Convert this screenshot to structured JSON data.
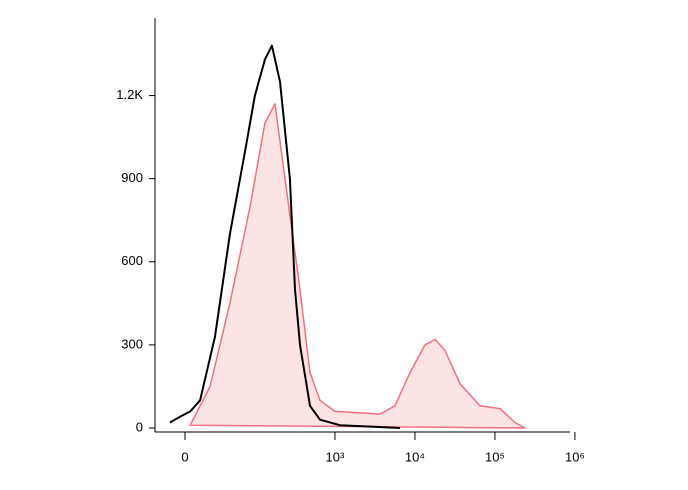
{
  "chart_data": {
    "type": "histogram-overlay",
    "xscale": "biexponential",
    "xlim": [
      -26,
      1000000
    ],
    "ylim": [
      0,
      1480
    ],
    "xticks": [
      0,
      {
        "value": 1000,
        "label": "10³"
      },
      {
        "value": 10000,
        "label": "10⁴"
      },
      {
        "value": 100000,
        "label": "10⁵"
      },
      {
        "value": 1000000,
        "label": "10⁶"
      }
    ],
    "yticks": [
      0,
      300,
      600,
      900,
      {
        "value": 1200,
        "label": "1.2K"
      }
    ],
    "series": [
      {
        "color": "#f07080",
        "fill": "#fde4e4",
        "x": [
          4,
          21,
          45,
          85,
          132,
          177,
          237,
          365,
          488,
          650,
          1000,
          2056,
          3655,
          5633,
          8680,
          13370,
          17840,
          23790,
          36630,
          65150,
          115800,
          178400,
          237600
        ],
        "values": [
          10,
          150,
          450,
          800,
          1100,
          1170,
          900,
          500,
          200,
          100,
          60,
          55,
          50,
          80,
          200,
          300,
          320,
          280,
          160,
          80,
          70,
          20,
          0
        ]
      },
      {
        "color": "#000000",
        "x": [
          -12,
          -4,
          4,
          12,
          26,
          45,
          73,
          98,
          132,
          162,
          205,
          273,
          316,
          365,
          488,
          650,
          1156,
          6514
        ],
        "values": [
          20,
          40,
          60,
          100,
          330,
          700,
          1000,
          1200,
          1330,
          1380,
          1250,
          900,
          500,
          300,
          80,
          30,
          10,
          0
        ]
      }
    ]
  }
}
